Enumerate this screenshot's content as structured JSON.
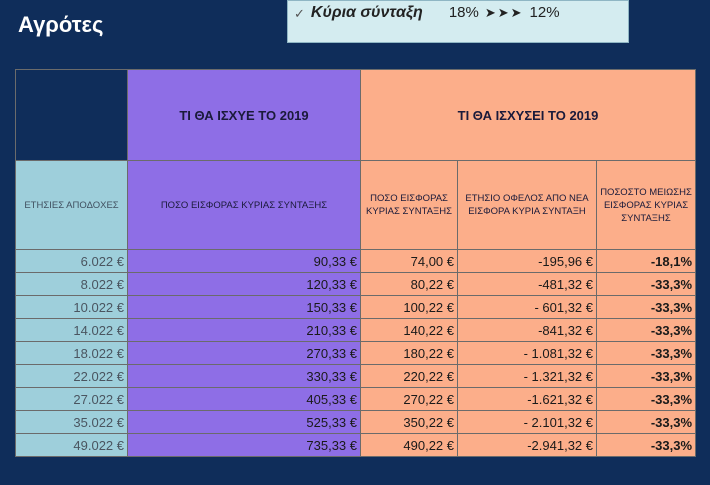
{
  "title": "Αγρότες",
  "banner": {
    "label": "Κύρια σύνταξη",
    "from": "18%",
    "arrows": "➤➤➤",
    "to": "12%"
  },
  "table": {
    "group_headers": {
      "before": "ΤΙ ΘΑ ΙΣΧΥΕ ΤΟ 2019",
      "after": "ΤΙ ΘΑ ΙΣΧΥΣΕΙ ΤΟ 2019"
    },
    "columns": [
      "ΕΤΗΣΙΕΣ ΑΠΟΔΟΧΕΣ",
      "ΠΟΣΟ ΕΙΣΦΟΡΑΣ ΚΥΡΙΑΣ ΣΥΝΤΑΞΗΣ",
      "ΠΟΣΟ ΕΙΣΦΟΡΑΣ ΚΥΡΙΑΣ ΣΥΝΤΑΞΗΣ",
      "ΕΤΗΣΙΟ ΟΦΕΛΟΣ ΑΠΟ ΝΕΑ ΕΙΣΦΟΡΑ ΚΥΡΙΑ ΣΥΝΤΑΞΗ",
      "ΠΟΣΟΣΤΟ ΜΕΙΩΣΗΣ ΕΙΣΦΟΡΑΣ ΚΥΡΙΑΣ ΣΥΝΤΑΞΗΣ"
    ],
    "rows": [
      [
        "6.022 €",
        "90,33 €",
        "74,00 €",
        "-195,96 €",
        "-18,1%"
      ],
      [
        "8.022 €",
        "120,33 €",
        "80,22 €",
        "-481,32 €",
        "-33,3%"
      ],
      [
        "10.022 €",
        "150,33 €",
        "100,22 €",
        "- 601,32 €",
        "-33,3%"
      ],
      [
        "14.022 €",
        "210,33 €",
        "140,22 €",
        "-841,32 €",
        "-33,3%"
      ],
      [
        "18.022 €",
        "270,33 €",
        "180,22 €",
        "- 1.081,32 €",
        "-33,3%"
      ],
      [
        "22.022 €",
        "330,33 €",
        "220,22 €",
        "- 1.321,32 €",
        "-33,3%"
      ],
      [
        "27.022 €",
        "405,33 €",
        "270,22 €",
        "-1.621,32 €",
        "-33,3%"
      ],
      [
        "35.022 €",
        "525,33 €",
        "350,22 €",
        "- 2.101,32 €",
        "-33,3%"
      ],
      [
        "49.022 €",
        "735,33 €",
        "490,22 €",
        "-2.941,32 €",
        "-33,3%"
      ]
    ]
  },
  "colors": {
    "background": "#0f2d5a",
    "blue_column": "#9ecfdb",
    "purple_column": "#8e6ee6",
    "salmon_columns": "#fcae8a"
  }
}
